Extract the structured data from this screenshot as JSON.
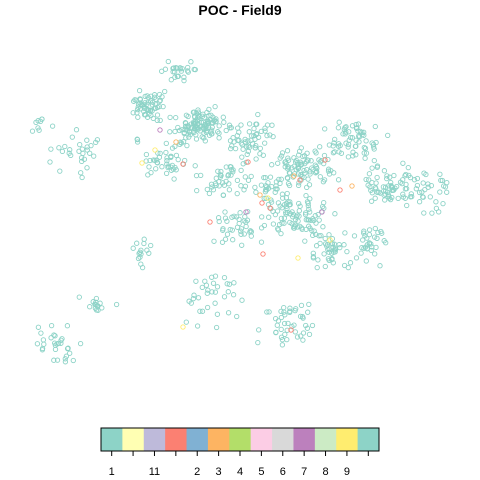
{
  "chart_data": {
    "type": "scatter",
    "title": "POC - Field9",
    "legend": {
      "position": "bottom",
      "entries": [
        {
          "label": "1",
          "color": "#8DD3C7"
        },
        {
          "label": "",
          "color": "#FFFFB3"
        },
        {
          "label": "11",
          "color": "#BEBADA"
        },
        {
          "label": "",
          "color": "#FB8072"
        },
        {
          "label": "2",
          "color": "#80B1D3"
        },
        {
          "label": "3",
          "color": "#FDB462"
        },
        {
          "label": "4",
          "color": "#B3DE69"
        },
        {
          "label": "5",
          "color": "#FCCDE5"
        },
        {
          "label": "6",
          "color": "#D9D9D9"
        },
        {
          "label": "7",
          "color": "#BC80BD"
        },
        {
          "label": "8",
          "color": "#CCEBC5"
        },
        {
          "label": "9",
          "color": "#FFED6F"
        },
        {
          "label": "",
          "color": "#8DD3C7"
        }
      ]
    },
    "series": [
      {
        "category": "1",
        "color": "#8DD3C7",
        "points": "clusters"
      },
      {
        "category": "",
        "color": "#FB8072",
        "points": [
          [
            248,
            162
          ],
          [
            210,
            222
          ],
          [
            262,
            203
          ],
          [
            183,
            164
          ],
          [
            300,
            180
          ],
          [
            340,
            190
          ],
          [
            291,
            330
          ],
          [
            263,
            254
          ],
          [
            270,
            208
          ],
          [
            325,
            160
          ]
        ]
      },
      {
        "category": "",
        "color": "#FFED6F",
        "points": [
          [
            142,
            163
          ],
          [
            183,
            327
          ],
          [
            268,
            198
          ],
          [
            330,
            240
          ],
          [
            298,
            258
          ],
          [
            155,
            150
          ]
        ]
      },
      {
        "category": "3",
        "color": "#FDB462",
        "points": [
          [
            176,
            142
          ],
          [
            294,
            176
          ],
          [
            352,
            186
          ],
          [
            260,
            195
          ]
        ]
      },
      {
        "category": "7",
        "color": "#BC80BD",
        "points": [
          [
            160,
            130
          ],
          [
            322,
            212
          ],
          [
            246,
            212
          ]
        ]
      }
    ]
  }
}
